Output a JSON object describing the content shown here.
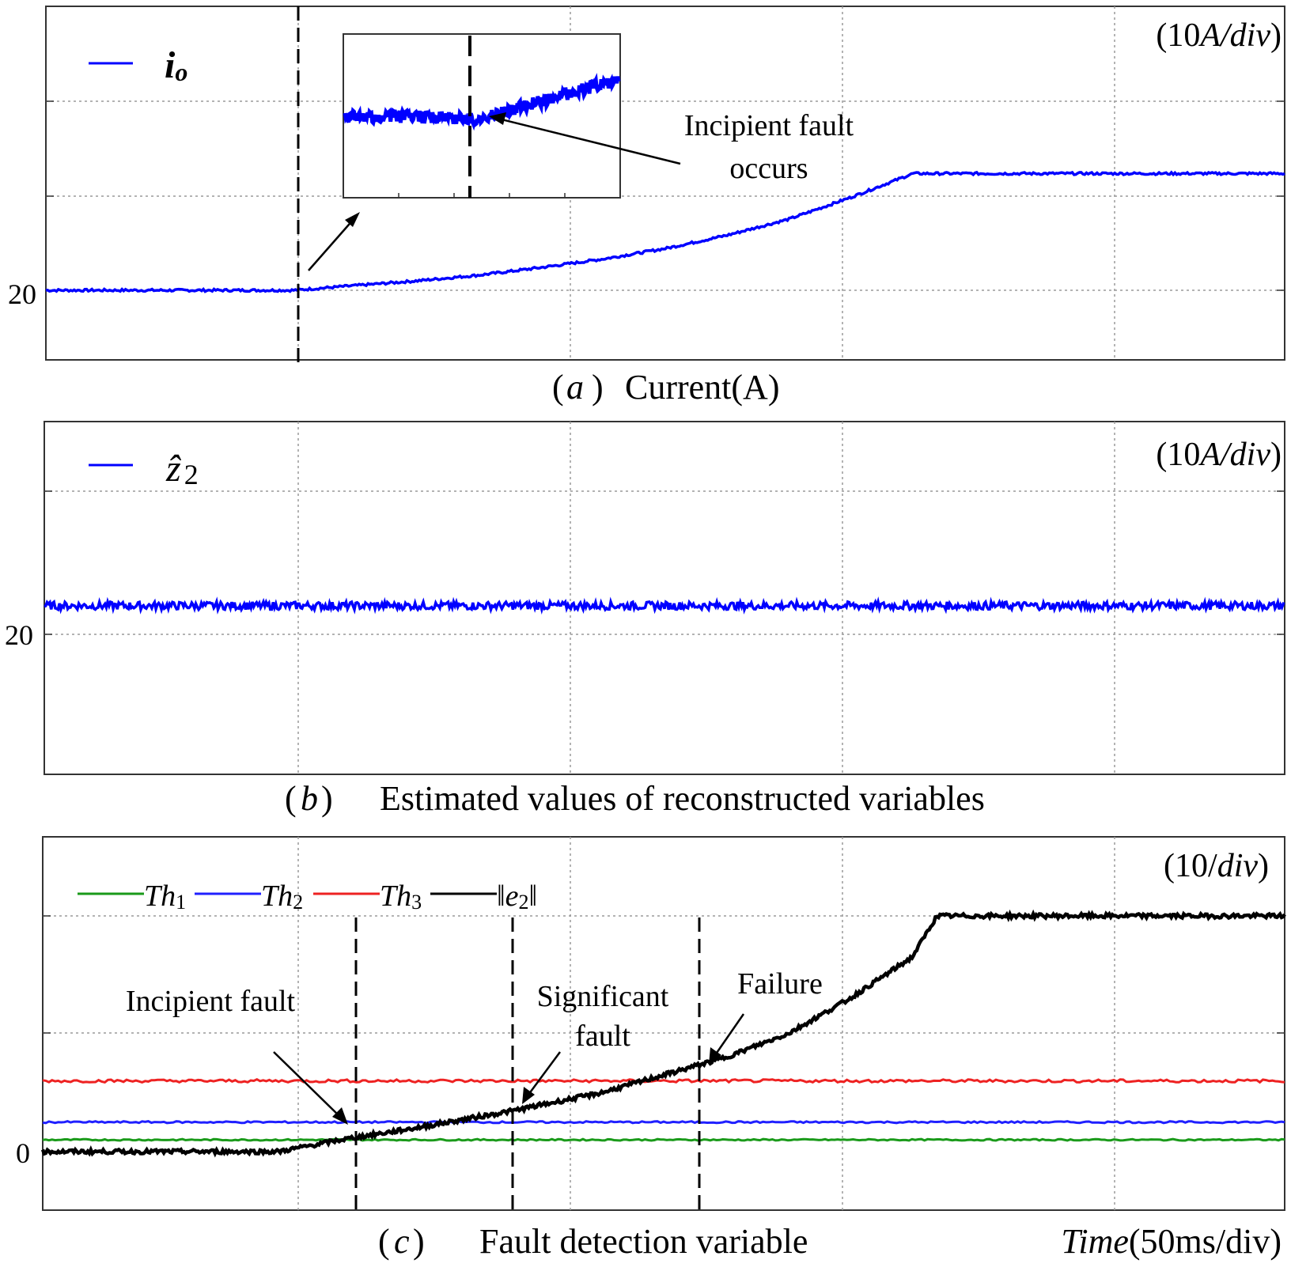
{
  "chart_data": [
    {
      "id": "a",
      "type": "line",
      "caption_letter": "a",
      "caption_text": "Current(A)",
      "scale_text_num": "(10",
      "scale_text_unit": "A/div",
      "scale_text_close": ")",
      "ytick_label": "20",
      "legend": [
        {
          "name": "i",
          "sub": "o",
          "color": "#0000ff"
        }
      ],
      "series": [
        {
          "name": "i_o",
          "color": "#0000ff",
          "points": [
            [
              0,
              20.0
            ],
            [
              2.0,
              20.0
            ],
            [
              2.5,
              20.5
            ],
            [
              3.0,
              21.0
            ],
            [
              3.5,
              21.6
            ],
            [
              4.0,
              22.4
            ],
            [
              4.5,
              23.3
            ],
            [
              5.0,
              24.4
            ],
            [
              5.5,
              25.8
            ],
            [
              6.0,
              27.5
            ],
            [
              6.5,
              29.8
            ],
            [
              7.0,
              32.3
            ],
            [
              10.0,
              32.3
            ]
          ]
        }
      ],
      "annotation": [
        "Incipient fault",
        "occurs"
      ],
      "fault_time": 2.0
    },
    {
      "id": "b",
      "type": "line",
      "caption_letter": "b",
      "caption_text": "Estimated values of reconstructed variables",
      "scale_text_num": "(10",
      "scale_text_unit": "A/div",
      "scale_text_close": ")",
      "ytick_label": "20",
      "legend": [
        {
          "name": "ẑ",
          "sub": "2",
          "color": "#0000ff"
        }
      ],
      "series": [
        {
          "name": "z2_hat",
          "color": "#0000ff",
          "points": [
            [
              0,
              22.0
            ],
            [
              10.0,
              22.0
            ]
          ]
        }
      ]
    },
    {
      "id": "c",
      "type": "line",
      "caption_letter": "c",
      "caption_text": "Fault detection variable",
      "scale_text_num": "(10/",
      "scale_text_unit": "div",
      "scale_text_close": ")",
      "xlabel_time": "Time",
      "xlabel_scale": "(50ms/div)",
      "ytick_label": "0",
      "legend": [
        {
          "name": "Th",
          "sub": "1",
          "color": "#1a9a1a"
        },
        {
          "name": "Th",
          "sub": "2",
          "color": "#2020ff"
        },
        {
          "name": "Th",
          "sub": "3",
          "color": "#ee2222"
        },
        {
          "name": "‖e",
          "sub": "2",
          "suffix": "‖",
          "color": "#000000"
        }
      ],
      "series": [
        {
          "name": "Th1",
          "color": "#1a9a1a",
          "points": [
            [
              0,
              1.0
            ],
            [
              10.0,
              1.0
            ]
          ]
        },
        {
          "name": "Th2",
          "color": "#2020ff",
          "points": [
            [
              0,
              2.5
            ],
            [
              10.0,
              2.5
            ]
          ]
        },
        {
          "name": "Th3",
          "color": "#ee2222",
          "points": [
            [
              0,
              6.0
            ],
            [
              10.0,
              6.0
            ]
          ]
        },
        {
          "name": "||e2||",
          "color": "#000000",
          "points": [
            [
              0,
              0.0
            ],
            [
              1.9,
              0.0
            ],
            [
              2.4,
              1.0
            ],
            [
              3.0,
              2.0
            ],
            [
              3.8,
              3.5
            ],
            [
              4.5,
              5.0
            ],
            [
              5.0,
              6.5
            ],
            [
              5.5,
              8.0
            ],
            [
              6.0,
              10.0
            ],
            [
              6.5,
              13.0
            ],
            [
              7.0,
              16.5
            ],
            [
              7.2,
              20.0
            ],
            [
              10.0,
              20.0
            ]
          ]
        }
      ],
      "ann_incipient": "Incipient fault",
      "ann_significant": [
        "Significant",
        "fault"
      ],
      "ann_failure": "Failure",
      "event_times": [
        2.4,
        3.8,
        5.0
      ]
    }
  ]
}
